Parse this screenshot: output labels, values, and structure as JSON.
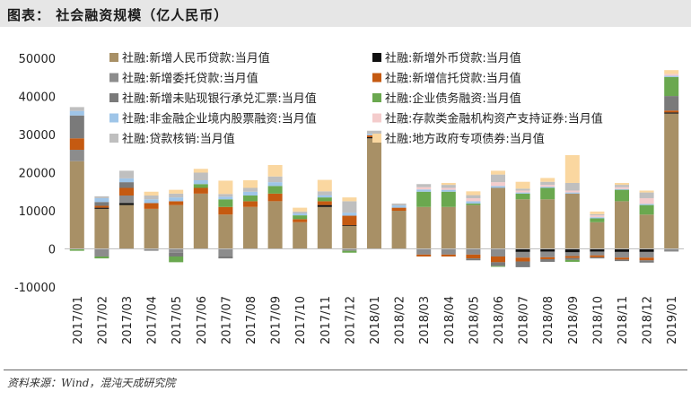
{
  "header": {
    "title": "图表：  社会融资规模（亿人民币）"
  },
  "footer": {
    "source": "资料来源：Wind，混沌天成研究院"
  },
  "chart_data": {
    "type": "bar",
    "stacked": true,
    "ylim": [
      -10000,
      50000
    ],
    "yticks": [
      -10000,
      0,
      10000,
      20000,
      30000,
      40000,
      50000
    ],
    "categories": [
      "2017/01",
      "2017/02",
      "2017/03",
      "2017/04",
      "2017/05",
      "2017/06",
      "2017/07",
      "2017/08",
      "2017/09",
      "2017/10",
      "2017/11",
      "2017/12",
      "2018/01",
      "2018/02",
      "2018/03",
      "2018/04",
      "2018/05",
      "2018/06",
      "2018/07",
      "2018/08",
      "2018/09",
      "2018/10",
      "2018/11",
      "2018/12",
      "2019/01"
    ],
    "legend_position": "top",
    "series": [
      {
        "name": "社融:新增人民币贷款:当月值",
        "color": "#a89066",
        "values": [
          23000,
          10500,
          11500,
          10500,
          11500,
          14500,
          9000,
          11000,
          12500,
          7000,
          11000,
          6000,
          29000,
          10000,
          11000,
          11000,
          11500,
          16000,
          13000,
          13000,
          14500,
          7000,
          12500,
          9000,
          35500
        ]
      },
      {
        "name": "社融:新增外币贷款:当月值",
        "color": "#111111",
        "values": [
          0,
          300,
          500,
          0,
          0,
          0,
          0,
          0,
          0,
          0,
          500,
          200,
          300,
          0,
          0,
          0,
          0,
          0,
          -800,
          -700,
          -900,
          -700,
          -800,
          -800,
          300
        ]
      },
      {
        "name": "社融:新增委托贷款:当月值",
        "color": "#8c8c8c",
        "values": [
          3000,
          -2000,
          2000,
          -500,
          -1000,
          0,
          -2000,
          0,
          0,
          0,
          0,
          -500,
          0,
          0,
          -1500,
          -1500,
          -1500,
          -2000,
          -1500,
          -1500,
          -1000,
          -1000,
          -1500,
          -1500,
          -700
        ]
      },
      {
        "name": "社融:新增信托贷款:当月值",
        "color": "#c55a11",
        "values": [
          3000,
          500,
          2000,
          1500,
          1000,
          1500,
          2000,
          1500,
          2000,
          800,
          1000,
          2500,
          500,
          800,
          -500,
          -500,
          -1000,
          -1500,
          -1000,
          -500,
          -500,
          -500,
          -500,
          -700,
          500
        ]
      },
      {
        "name": "社融:新增未贴现银行承兑汇票:当月值",
        "color": "#7a7a7a",
        "values": [
          6000,
          1000,
          1500,
          0,
          -1000,
          0,
          -500,
          0,
          0,
          0,
          0,
          0,
          0,
          0,
          0,
          0,
          -500,
          -1000,
          -1500,
          -700,
          -500,
          -300,
          -400,
          -600,
          3800
        ]
      },
      {
        "name": "社融:企业债务融资:当月值",
        "color": "#6aa84f",
        "values": [
          -500,
          -500,
          0,
          0,
          -1500,
          1000,
          2000,
          1500,
          2000,
          1000,
          1000,
          -500,
          0,
          0,
          4000,
          4000,
          400,
          -200,
          1500,
          3000,
          -500,
          1000,
          3000,
          2500,
          5000
        ]
      },
      {
        "name": "社融:非金融企业境内股票融资:当月值",
        "color": "#9fc5e8",
        "values": [
          1200,
          1000,
          1000,
          1000,
          1000,
          1000,
          700,
          1000,
          1000,
          500,
          600,
          800,
          400,
          600,
          600,
          500,
          600,
          500,
          300,
          300,
          300,
          300,
          200,
          300,
          300
        ]
      },
      {
        "name": "社融:存款类金融机构资产支持证券:当月值",
        "color": "#f4cccc",
        "values": [
          0,
          0,
          0,
          0,
          0,
          0,
          0,
          0,
          0,
          0,
          0,
          0,
          0,
          0,
          600,
          500,
          800,
          1000,
          500,
          500,
          500,
          500,
          500,
          1500,
          500
        ]
      },
      {
        "name": "社融:贷款核销:当月值",
        "color": "#bfbfbf",
        "values": [
          1000,
          500,
          2000,
          1000,
          1000,
          2000,
          700,
          1000,
          1500,
          500,
          1000,
          3000,
          800,
          500,
          800,
          800,
          800,
          2000,
          500,
          800,
          2000,
          300,
          600,
          1500,
          0
        ]
      },
      {
        "name": "社融:地方政府专项债券:当月值",
        "color": "#fad7a0",
        "values": [
          0,
          0,
          0,
          1000,
          1000,
          1000,
          3500,
          2000,
          3000,
          1000,
          3000,
          1000,
          0,
          0,
          0,
          500,
          1000,
          1000,
          1800,
          1000,
          7300,
          700,
          500,
          500,
          1000
        ]
      }
    ]
  }
}
